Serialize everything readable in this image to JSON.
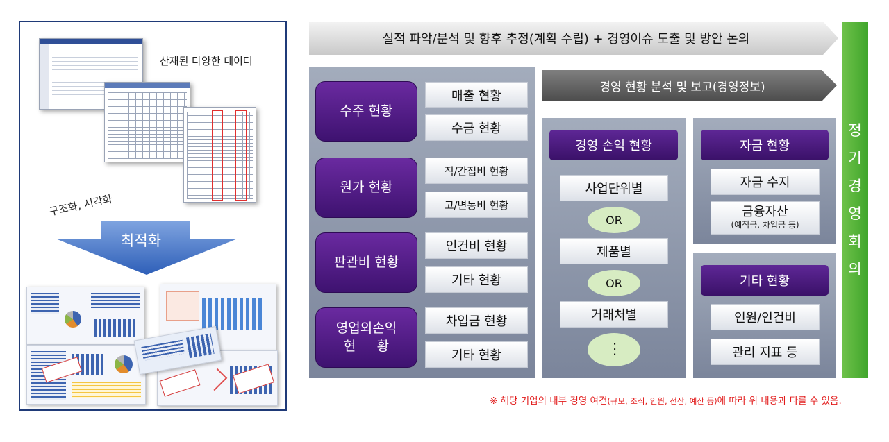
{
  "left": {
    "data_label": "산재된 다양한 데이터",
    "structure_label": "구조화, 시각화",
    "optimize_label": "최적화"
  },
  "top_arrow": "실적 파악/분석 및 향후 추정(계획 수립) + 경영이슈 도출 및 방안 논의",
  "categories": [
    {
      "label": "수주 현황",
      "items": [
        "매출 현황",
        "수금 현황"
      ]
    },
    {
      "label": "원가 현황",
      "items": [
        "직/간접비 현황",
        "고/변동비 현황"
      ]
    },
    {
      "label": "판관비 현황",
      "items": [
        "인건비 현황",
        "기타 현황"
      ]
    },
    {
      "label_line1": "영업외손익",
      "label_line2": "현     황",
      "items": [
        "차입금 현황",
        "기타 현황"
      ]
    }
  ],
  "sub_arrow": "경영 현황 분석 및 보고(경영정보)",
  "profit": {
    "title": "경영 손익 현황",
    "opt1": "사업단위별",
    "or1": "OR",
    "opt2": "제품별",
    "or2": "OR",
    "opt3": "거래처별",
    "dots": "···"
  },
  "funds": {
    "title": "자금 현황",
    "item1": "자금 수지",
    "item2": "금융자산",
    "item2_note": "(예적금, 차입금 등)"
  },
  "other": {
    "title": "기타 현황",
    "item1": "인원/인건비",
    "item2": "관리 지표 등"
  },
  "vertical_label": [
    "정",
    "기",
    "경",
    "영",
    "회",
    "의"
  ],
  "footnote": {
    "part1": "※ 해당 기업의 내부 경영 여건",
    "paren": "(규모, 조직, 인원, 전산, 예산 등)",
    "part2": "에 따라 위 내용과 다를 수 있음."
  },
  "colors": {
    "purple": "#4b1a80",
    "green_bar": "#52b335",
    "footnote_red": "#e21b1b",
    "panel_gray": "#8c95a8",
    "left_border": "#1f3a78"
  }
}
